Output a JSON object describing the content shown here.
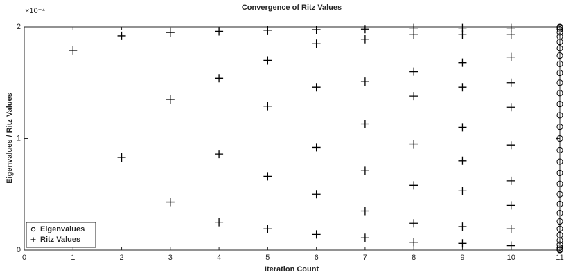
{
  "chart_data": {
    "type": "scatter",
    "title": "Convergence of Ritz Values",
    "xlabel": "Iteration Count",
    "ylabel": "Eigenvalues / Ritz Values",
    "y_exponent": "×10⁻⁴",
    "xlim": [
      0,
      11
    ],
    "xticks": [
      0,
      1,
      2,
      3,
      4,
      5,
      6,
      7,
      8,
      9,
      10,
      11
    ],
    "ylim": [
      0,
      2
    ],
    "yticks": [
      0,
      1,
      2
    ],
    "legend": "lower left",
    "series": [
      {
        "name": "Eigenvalues",
        "marker": "circle",
        "color": "#000000",
        "x": [
          11,
          11,
          11,
          11,
          11,
          11,
          11,
          11,
          11,
          11,
          11,
          11,
          11,
          11,
          11,
          11,
          11,
          11,
          11,
          11,
          11,
          11,
          11,
          11,
          11,
          11,
          11,
          11,
          11,
          11,
          11
        ],
        "values": [
          0,
          0.0055,
          0.0219,
          0.0489,
          0.0865,
          0.134,
          0.191,
          0.2569,
          0.3309,
          0.4122,
          0.5,
          0.5933,
          0.691,
          0.7921,
          0.8955,
          1,
          1.1045,
          1.2079,
          1.309,
          1.4067,
          1.5,
          1.5878,
          1.6691,
          1.7431,
          1.809,
          1.866,
          1.9135,
          1.9511,
          1.9781,
          1.9945,
          2
        ]
      },
      {
        "name": "Ritz Values",
        "marker": "plus",
        "color": "#000000",
        "x": [
          1,
          2,
          2,
          3,
          3,
          3,
          4,
          4,
          4,
          4,
          5,
          5,
          5,
          5,
          5,
          6,
          6,
          6,
          6,
          6,
          6,
          7,
          7,
          7,
          7,
          7,
          7,
          7,
          8,
          8,
          8,
          8,
          8,
          8,
          8,
          8,
          9,
          9,
          9,
          9,
          9,
          9,
          9,
          9,
          9,
          10,
          10,
          10,
          10,
          10,
          10,
          10,
          10,
          10,
          10
        ],
        "values": [
          1.79,
          1.92,
          0.83,
          1.95,
          1.35,
          0.43,
          1.96,
          1.54,
          0.86,
          0.25,
          1.97,
          1.7,
          1.29,
          0.66,
          0.19,
          1.975,
          1.85,
          1.46,
          0.92,
          0.5,
          0.14,
          1.98,
          1.89,
          1.51,
          1.13,
          0.71,
          0.35,
          0.11,
          1.99,
          1.93,
          1.6,
          1.38,
          0.95,
          0.58,
          0.24,
          0.07,
          1.99,
          1.93,
          1.68,
          1.46,
          1.1,
          0.8,
          0.53,
          0.21,
          0.06,
          1.99,
          1.93,
          1.73,
          1.5,
          1.28,
          0.94,
          0.62,
          0.4,
          0.19,
          0.04
        ]
      }
    ]
  }
}
